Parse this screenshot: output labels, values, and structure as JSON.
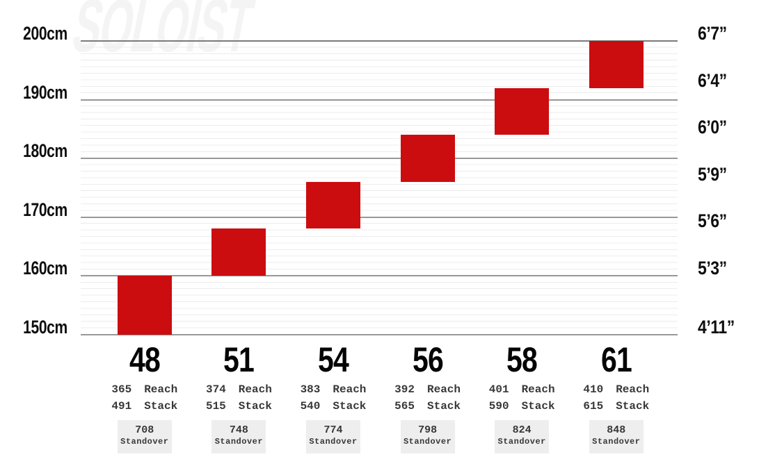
{
  "watermark_title": "SOLOIST",
  "labels": {
    "reach": "Reach",
    "stack": "Stack",
    "standover": "Standover"
  },
  "colors": {
    "bar_red": "#cb0d10",
    "grid_major": "#989898",
    "grid_major_top": "#7a7a7a",
    "grid_minor": "#ececec",
    "standover_box_bg": "#eeeeee",
    "axis_text": "#0e0e0e",
    "spec_text": "#383838",
    "watermark": "#f4f4f4"
  },
  "chart_data": {
    "type": "bar",
    "subtype": "floating-range-size-chart",
    "title": "SOLOIST",
    "categories": [
      "48",
      "51",
      "54",
      "56",
      "58",
      "61"
    ],
    "series": [
      {
        "name": "rider_height_range_cm",
        "values": [
          [
            150,
            160
          ],
          [
            160,
            168
          ],
          [
            168,
            176
          ],
          [
            176,
            184
          ],
          [
            184,
            192
          ],
          [
            192,
            200
          ]
        ]
      },
      {
        "name": "reach_mm",
        "values": [
          365,
          374,
          383,
          392,
          401,
          410
        ]
      },
      {
        "name": "stack_mm",
        "values": [
          491,
          515,
          540,
          565,
          590,
          615
        ]
      },
      {
        "name": "standover_mm",
        "values": [
          708,
          748,
          774,
          798,
          824,
          848
        ]
      }
    ],
    "left_axis": {
      "unit": "cm",
      "ticks": [
        {
          "label": "200cm",
          "cm": 200
        },
        {
          "label": "190cm",
          "cm": 190
        },
        {
          "label": "180cm",
          "cm": 180
        },
        {
          "label": "170cm",
          "cm": 170
        },
        {
          "label": "160cm",
          "cm": 160
        },
        {
          "label": "150cm",
          "cm": 150
        }
      ]
    },
    "right_axis": {
      "unit": "ft-in",
      "ticks": [
        {
          "label": "6’7”",
          "cm": 200
        },
        {
          "label": "6’4”",
          "cm": 192
        },
        {
          "label": "6’0”",
          "cm": 184
        },
        {
          "label": "5’9”",
          "cm": 176
        },
        {
          "label": "5’6”",
          "cm": 168
        },
        {
          "label": "5’3”",
          "cm": 160
        },
        {
          "label": "4’11”",
          "cm": 150
        }
      ]
    },
    "ylim": [
      150,
      200
    ],
    "grid": true,
    "legend": false,
    "bar_color": "#cb0d10"
  }
}
